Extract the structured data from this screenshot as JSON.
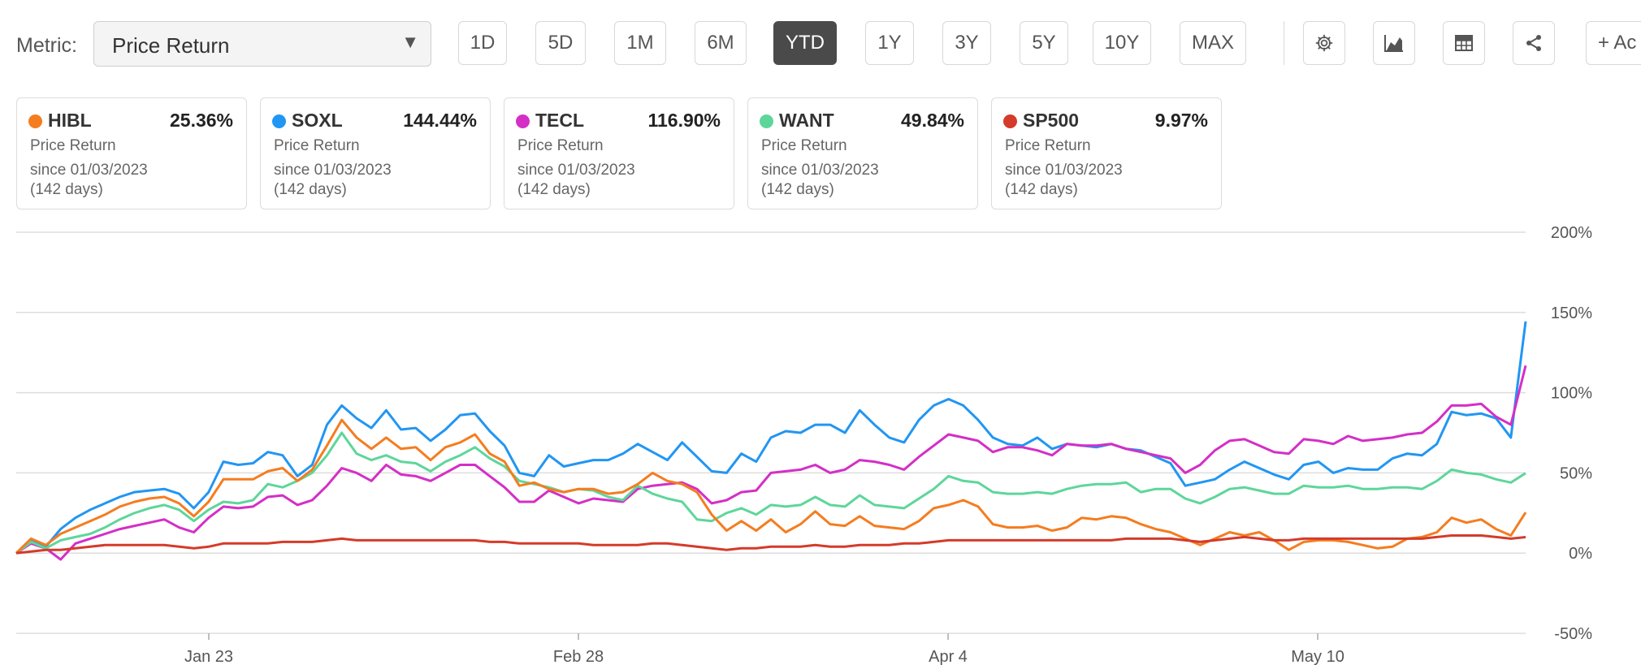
{
  "toolbar": {
    "metric_label": "Metric:",
    "metric_value": "Price Return",
    "periods": [
      "1D",
      "5D",
      "1M",
      "6M",
      "YTD",
      "1Y",
      "3Y",
      "5Y",
      "10Y",
      "MAX"
    ],
    "active_period": "YTD",
    "icons": [
      "gear-icon",
      "area-chart-icon",
      "table-icon",
      "share-icon"
    ],
    "add_label": "+ Ac"
  },
  "cards": [
    {
      "ticker": "HIBL",
      "return": "25.36%",
      "color": "#f57c1f",
      "line1": "Price Return",
      "line2": "since 01/03/2023",
      "line3": "(142 days)"
    },
    {
      "ticker": "SOXL",
      "return": "144.44%",
      "color": "#2196f3",
      "line1": "Price Return",
      "line2": "since 01/03/2023",
      "line3": "(142 days)"
    },
    {
      "ticker": "TECL",
      "return": "116.90%",
      "color": "#d42fc6",
      "line1": "Price Return",
      "line2": "since 01/03/2023",
      "line3": "(142 days)"
    },
    {
      "ticker": "WANT",
      "return": "49.84%",
      "color": "#5ed69a",
      "line1": "Price Return",
      "line2": "since 01/03/2023",
      "line3": "(142 days)"
    },
    {
      "ticker": "SP500",
      "return": "9.97%",
      "color": "#d43b2a",
      "line1": "Price Return",
      "line2": "since 01/03/2023",
      "line3": "(142 days)"
    }
  ],
  "chart_data": {
    "type": "line",
    "title": "",
    "xlabel": "",
    "ylabel": "",
    "ylim": [
      -50,
      200
    ],
    "xlim": [
      0,
      98
    ],
    "yticks": [
      -50,
      0,
      50,
      100,
      150,
      200
    ],
    "ytick_labels": [
      "-50%",
      "0%",
      "50%",
      "100%",
      "150%",
      "200%"
    ],
    "x_tick_labels": [
      "Jan 23",
      "Feb 28",
      "Apr 4",
      "May 10"
    ],
    "x_tick_positions": [
      12.5,
      36.5,
      60.5,
      84.5
    ],
    "grid": true,
    "y_axis_position": "right",
    "legend_position": "top-cards",
    "series": [
      {
        "name": "SOXL",
        "color": "#2196f3",
        "values": [
          0,
          8,
          4,
          15,
          22,
          27,
          31,
          35,
          38,
          39,
          40,
          37,
          28,
          38,
          57,
          55,
          56,
          63,
          61,
          48,
          55,
          80,
          92,
          84,
          78,
          89,
          77,
          78,
          70,
          77,
          86,
          87,
          76,
          67,
          50,
          48,
          61,
          54,
          56,
          58,
          58,
          62,
          68,
          63,
          58,
          69,
          60,
          51,
          50,
          62,
          57,
          72,
          76,
          75,
          80,
          80,
          75,
          89,
          80,
          72,
          69,
          83,
          92,
          96,
          92,
          83,
          72,
          68,
          67,
          72,
          65,
          68,
          67,
          66,
          68,
          65,
          64,
          60,
          56,
          42,
          44,
          46,
          52,
          57,
          53,
          49,
          46,
          55,
          57,
          50,
          53,
          52,
          52,
          59,
          62,
          61,
          68,
          88,
          86,
          87,
          84,
          72,
          144.44
        ]
      },
      {
        "name": "TECL",
        "color": "#d42fc6",
        "values": [
          0,
          6,
          3,
          -4,
          6,
          9,
          12,
          15,
          17,
          19,
          21,
          16,
          13,
          22,
          29,
          28,
          29,
          35,
          36,
          30,
          33,
          42,
          53,
          50,
          45,
          55,
          49,
          48,
          45,
          50,
          55,
          55,
          48,
          41,
          32,
          32,
          39,
          35,
          31,
          34,
          33,
          32,
          40,
          42,
          43,
          44,
          40,
          31,
          33,
          38,
          39,
          50,
          51,
          52,
          55,
          50,
          52,
          58,
          57,
          55,
          52,
          60,
          67,
          74,
          72,
          70,
          63,
          66,
          66,
          64,
          61,
          68,
          67,
          67,
          68,
          65,
          63,
          61,
          59,
          50,
          55,
          64,
          70,
          71,
          67,
          63,
          62,
          71,
          70,
          68,
          73,
          70,
          71,
          72,
          74,
          75,
          82,
          92,
          92,
          93,
          85,
          80,
          116.9
        ]
      },
      {
        "name": "WANT",
        "color": "#5ed69a",
        "values": [
          0,
          7,
          3,
          8,
          10,
          12,
          16,
          21,
          25,
          28,
          30,
          27,
          20,
          27,
          32,
          31,
          33,
          43,
          41,
          45,
          50,
          61,
          75,
          62,
          58,
          61,
          57,
          56,
          51,
          57,
          61,
          66,
          59,
          54,
          45,
          43,
          41,
          38,
          40,
          39,
          35,
          33,
          42,
          37,
          34,
          32,
          21,
          20,
          25,
          28,
          24,
          30,
          29,
          30,
          35,
          30,
          29,
          36,
          30,
          29,
          28,
          34,
          40,
          48,
          45,
          44,
          38,
          37,
          37,
          38,
          37,
          40,
          42,
          43,
          43,
          44,
          38,
          40,
          40,
          34,
          31,
          35,
          40,
          41,
          39,
          37,
          37,
          42,
          41,
          41,
          42,
          40,
          40,
          41,
          41,
          40,
          45,
          52,
          50,
          49,
          46,
          44,
          49.84
        ]
      },
      {
        "name": "HIBL",
        "color": "#f57c1f",
        "values": [
          0,
          9,
          5,
          12,
          16,
          20,
          24,
          29,
          32,
          34,
          35,
          31,
          23,
          32,
          46,
          46,
          46,
          51,
          53,
          45,
          52,
          67,
          83,
          72,
          65,
          72,
          65,
          66,
          58,
          66,
          69,
          74,
          62,
          57,
          42,
          44,
          40,
          38,
          40,
          40,
          37,
          38,
          43,
          50,
          45,
          43,
          38,
          24,
          14,
          20,
          14,
          21,
          13,
          18,
          26,
          18,
          17,
          23,
          17,
          16,
          15,
          20,
          28,
          30,
          33,
          29,
          18,
          16,
          16,
          17,
          14,
          16,
          22,
          21,
          23,
          22,
          18,
          15,
          13,
          9,
          5,
          9,
          13,
          11,
          13,
          8,
          2,
          7,
          8,
          8,
          7,
          5,
          3,
          4,
          9,
          10,
          13,
          22,
          19,
          21,
          15,
          11,
          25.36
        ]
      },
      {
        "name": "SP500",
        "color": "#d43b2a",
        "values": [
          0,
          1,
          2,
          2,
          3,
          4,
          5,
          5,
          5,
          5,
          5,
          4,
          3,
          4,
          6,
          6,
          6,
          6,
          7,
          7,
          7,
          8,
          9,
          8,
          8,
          8,
          8,
          8,
          8,
          8,
          8,
          8,
          7,
          7,
          6,
          6,
          6,
          6,
          6,
          5,
          5,
          5,
          5,
          6,
          6,
          5,
          4,
          3,
          2,
          3,
          3,
          4,
          4,
          4,
          5,
          4,
          4,
          5,
          5,
          5,
          6,
          6,
          7,
          8,
          8,
          8,
          8,
          8,
          8,
          8,
          8,
          8,
          8,
          8,
          8,
          9,
          9,
          9,
          9,
          8,
          7,
          8,
          9,
          10,
          9,
          8,
          8,
          9,
          9,
          9,
          9,
          9,
          9,
          9,
          9,
          9,
          10,
          11,
          11,
          11,
          10,
          9,
          9.97
        ]
      }
    ]
  }
}
